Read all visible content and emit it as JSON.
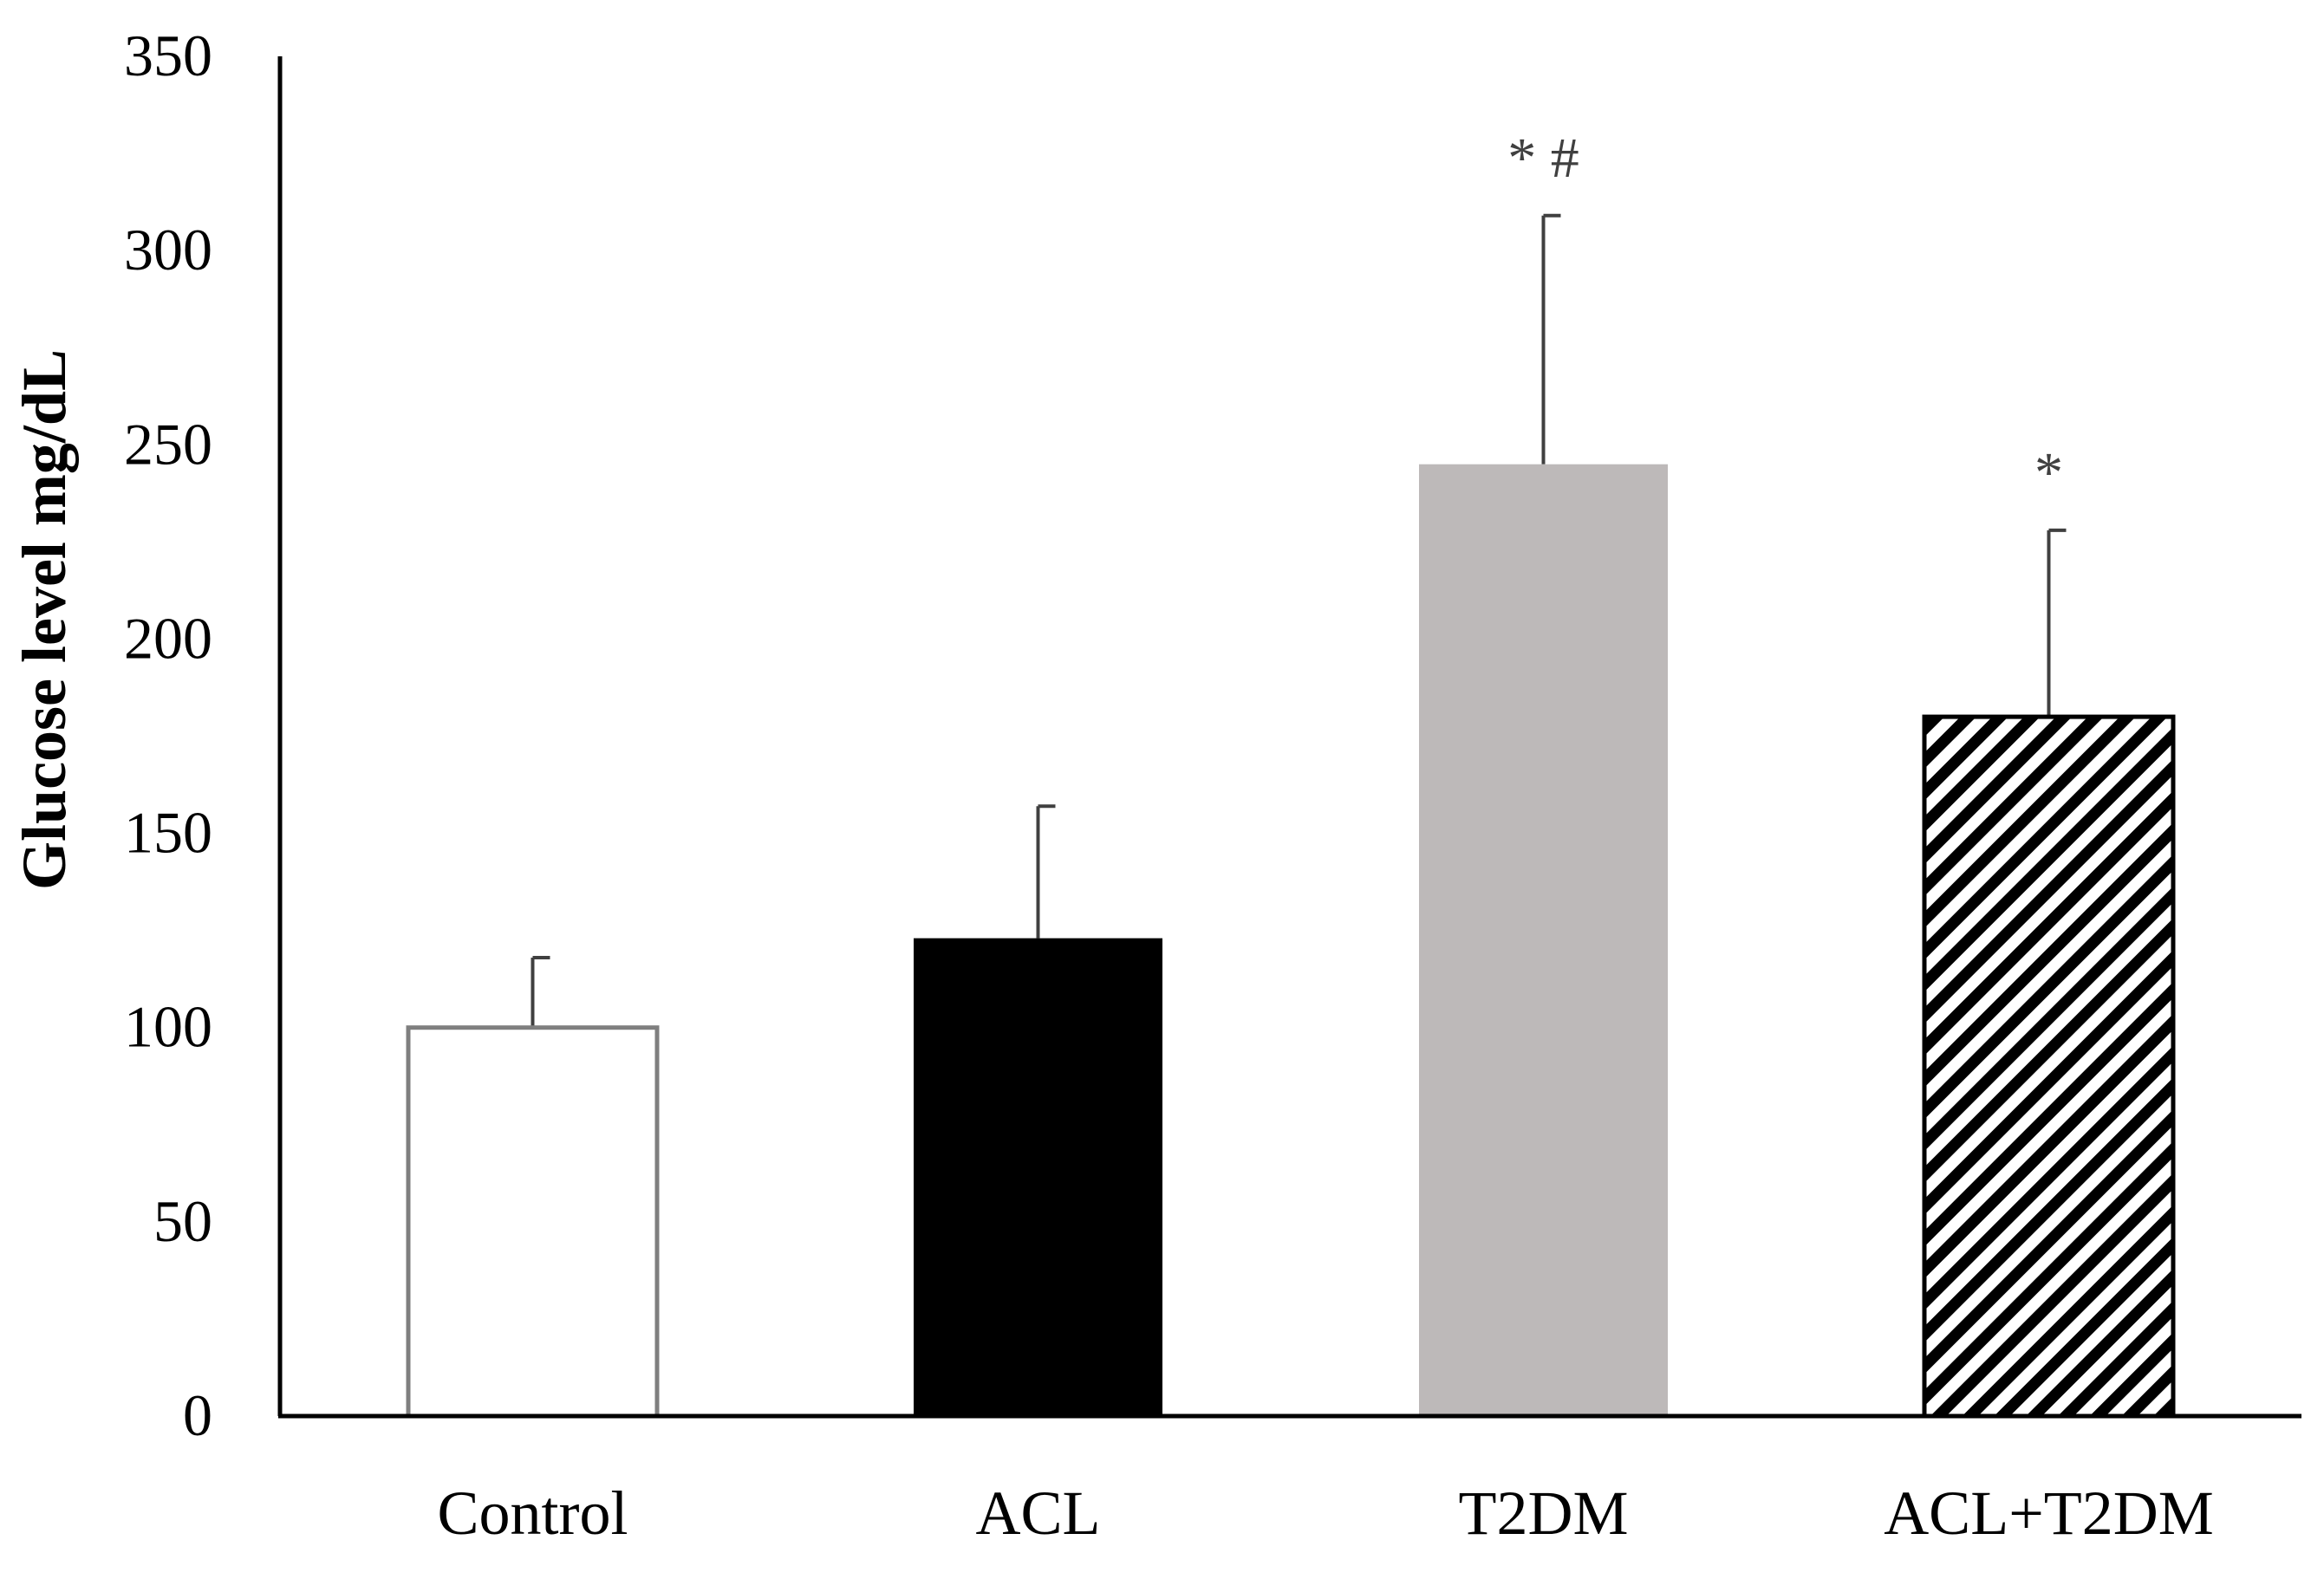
{
  "chart_data": {
    "type": "bar",
    "title": "",
    "xlabel": "",
    "ylabel": "Glucose level  mg/dL",
    "ylim": [
      0,
      350
    ],
    "yticks": [
      "0",
      "50",
      "100",
      "150",
      "200",
      "250",
      "300",
      "350"
    ],
    "grid": false,
    "categories": [
      "Control",
      "ACL",
      "T2DM",
      "ACL+T2DM"
    ],
    "values": [
      100,
      123,
      245,
      180
    ],
    "errors": [
      18,
      34,
      64,
      48
    ],
    "annotations": [
      "",
      "",
      "* #",
      "*"
    ],
    "fills": [
      "white",
      "black",
      "gray",
      "hatched"
    ]
  },
  "colors": {
    "axis": "#000000",
    "control_fill": "#ffffff",
    "acl_fill": "#000000",
    "t2dm_fill": "#bdb9b9",
    "hatch_fill": "#000000",
    "bar_outline": "#7f7f7f",
    "error_bar": "#404040"
  }
}
